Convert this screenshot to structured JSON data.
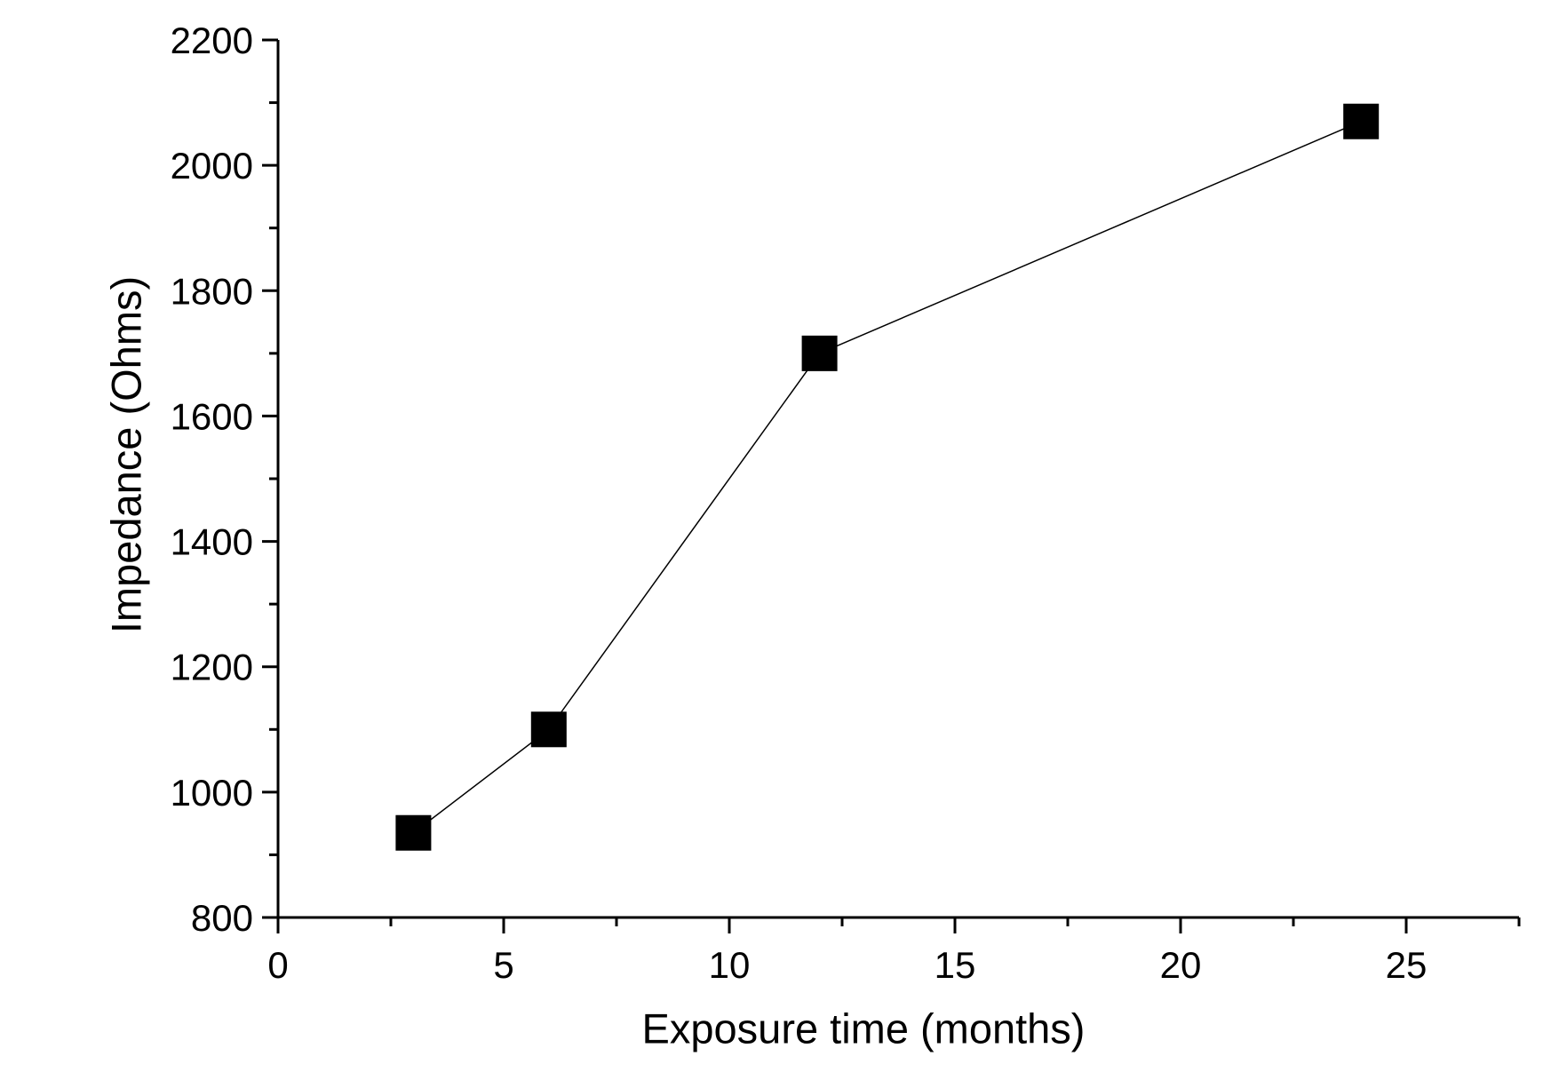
{
  "chart_data": {
    "type": "line",
    "title": "",
    "xlabel": "Exposure time (months)",
    "ylabel": "Impedance (Ohms)",
    "series": [
      {
        "name": "Impedance",
        "x": [
          3,
          6,
          12,
          24
        ],
        "y": [
          935,
          1100,
          1700,
          2070
        ],
        "marker": "filled-square",
        "marker_color": "#000000",
        "line_color": "#000000"
      }
    ],
    "xlim": [
      0,
      27.5
    ],
    "ylim": [
      800,
      2200
    ],
    "x_major_ticks": [
      0,
      5,
      10,
      15,
      20,
      25
    ],
    "x_minor_ticks": [
      2.5,
      7.5,
      12.5,
      17.5,
      22.5,
      27.5
    ],
    "y_major_ticks": [
      800,
      1000,
      1200,
      1400,
      1600,
      1800,
      2000,
      2200
    ],
    "y_minor_ticks": [
      900,
      1100,
      1300,
      1500,
      1700,
      1900,
      2100
    ],
    "grid": false,
    "legend": "none",
    "frame": "left-bottom-axes-only",
    "axis_color": "#000000",
    "background_color": "#ffffff"
  }
}
